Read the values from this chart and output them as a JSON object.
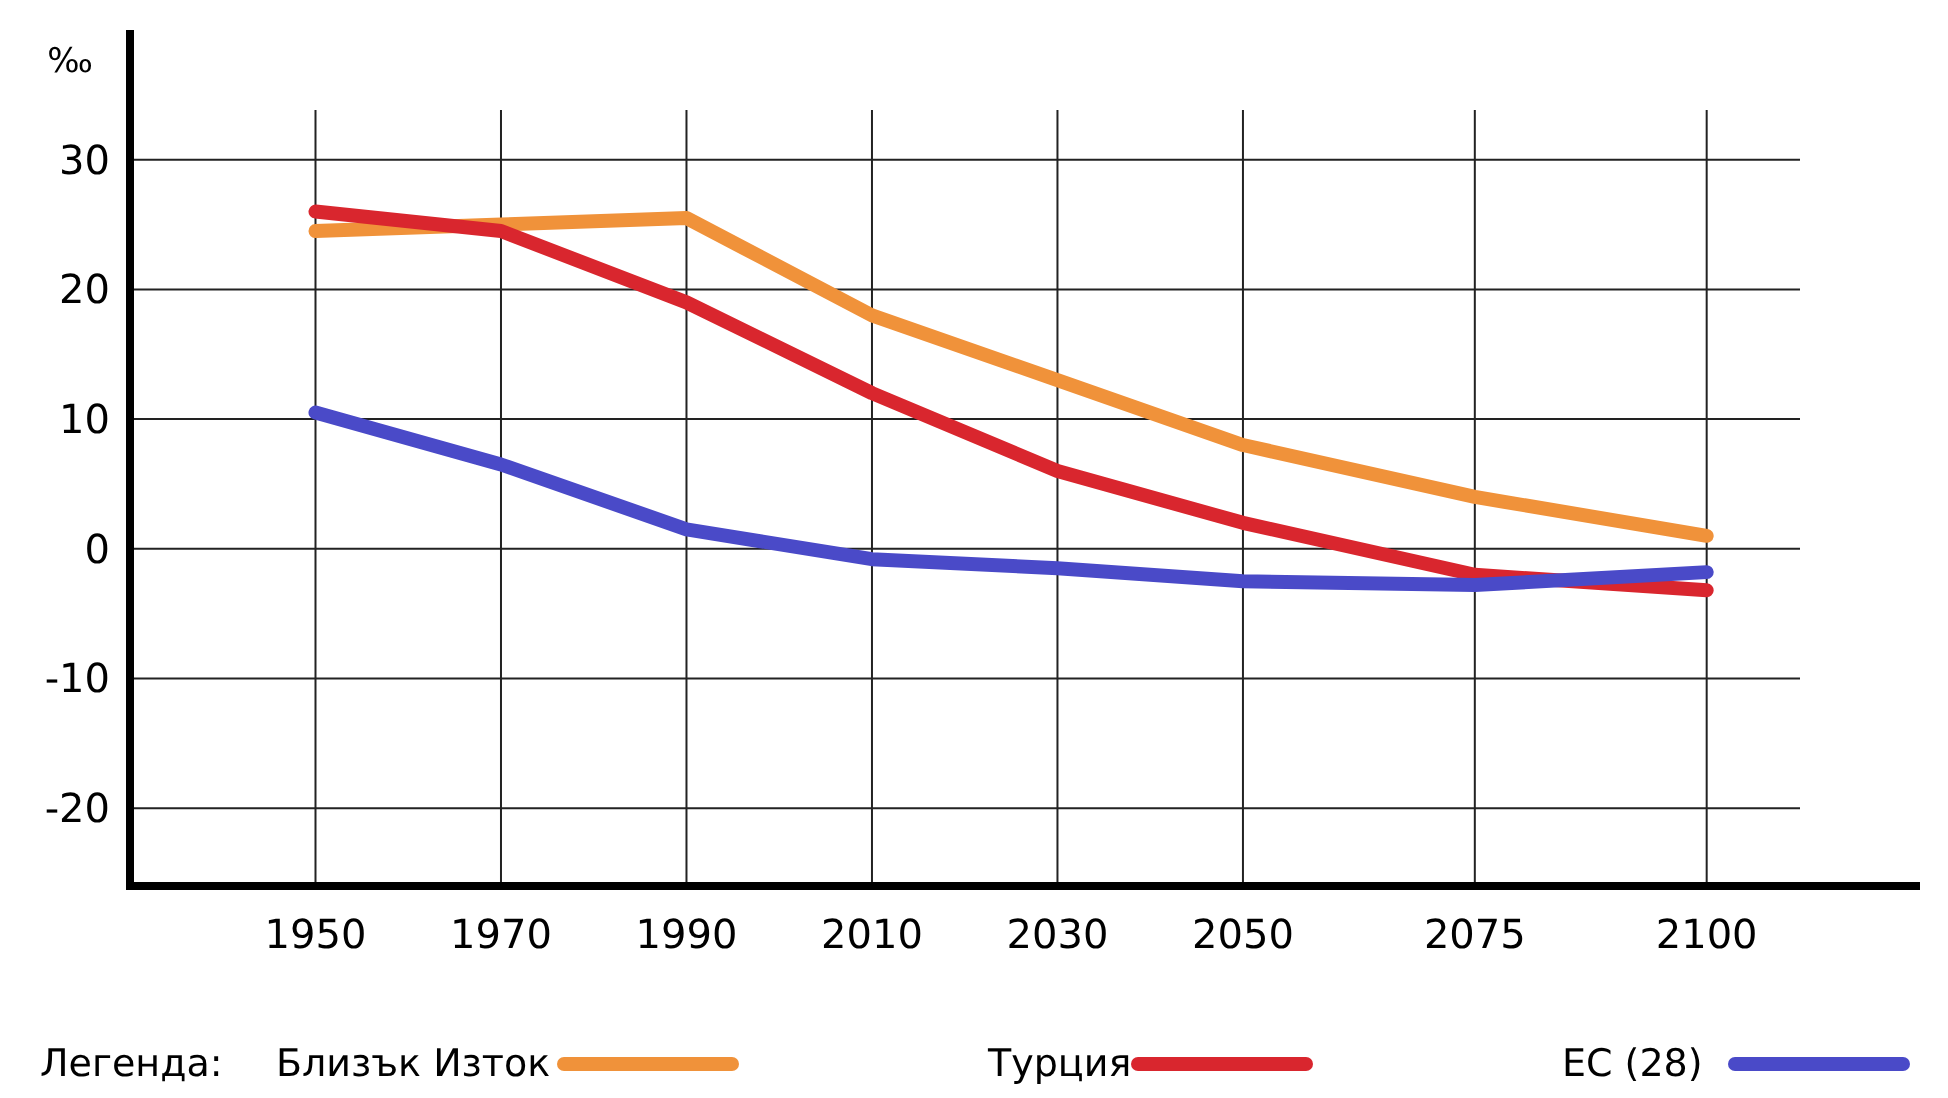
{
  "chart_data": {
    "type": "line",
    "ylabel": "‰",
    "legend_title": "Легенда:",
    "x": [
      1950,
      1970,
      1990,
      2010,
      2030,
      2050,
      2075,
      2100
    ],
    "xlim": [
      1930,
      2123
    ],
    "xticks": [
      1950,
      1970,
      1990,
      2010,
      2030,
      2050,
      2075,
      2100
    ],
    "ylim": [
      -26,
      40
    ],
    "yticks": [
      -20,
      -10,
      0,
      10,
      20,
      30
    ],
    "grid": true,
    "legend": "bottom",
    "marker": "none",
    "line_style": "solid",
    "series": [
      {
        "name": "Близък Изток",
        "color": "#f0923a",
        "values": [
          24.5,
          25,
          25.5,
          18,
          13,
          8,
          4,
          1
        ]
      },
      {
        "name": "Турция",
        "color": "#d9262e",
        "values": [
          26,
          24.5,
          19,
          12,
          6,
          2,
          -2,
          -3.2
        ]
      },
      {
        "name": "ЕС (28)",
        "color": "#4a4ac8",
        "values": [
          10.5,
          6.5,
          1.5,
          -0.8,
          -1.5,
          -2.5,
          -2.8,
          -1.8
        ]
      }
    ]
  }
}
